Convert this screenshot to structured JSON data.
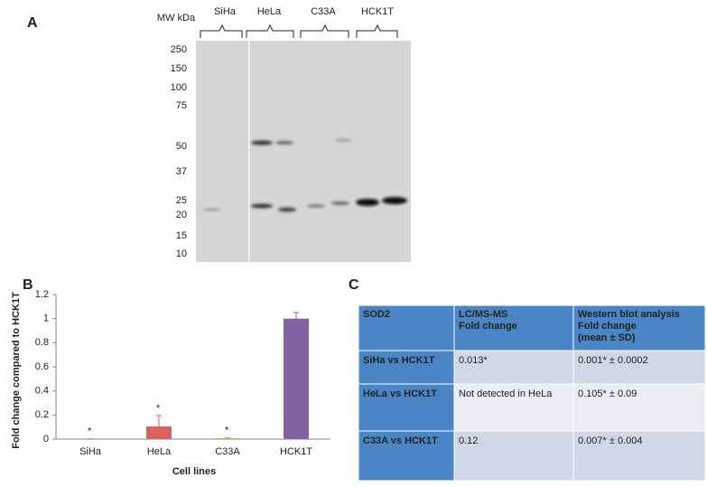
{
  "panel_labels": [
    "A",
    "B",
    "C"
  ],
  "blot": {
    "mw_label": "MW kDa",
    "mw_markers": [
      250,
      150,
      100,
      75,
      50,
      37,
      25,
      20,
      15,
      10
    ],
    "lanes": [
      "SiHa",
      "HeLa",
      "C33A",
      "HCK1T"
    ]
  },
  "chart_data": {
    "type": "bar",
    "ylabel": "Fold change compared to HCK1T",
    "xlabel": "Cell lines",
    "categories": [
      "SiHa",
      "HeLa",
      "C33A",
      "HCK1T"
    ],
    "series": [
      {
        "values": [
          0.001,
          0.105,
          0.007,
          1.0
        ],
        "errors": [
          0.0002,
          0.09,
          0.004,
          0.05
        ],
        "colors": [
          "#4f81bd",
          "#d9625e",
          "#9bbb59",
          "#8064a2"
        ]
      }
    ],
    "annotations": [
      "*",
      "*",
      "*"
    ],
    "ylim": [
      0,
      1.2
    ],
    "yticks": [
      0,
      0.2,
      0.4,
      0.6,
      0.8,
      1,
      1.2
    ]
  },
  "table": {
    "header": [
      [
        "SOD2"
      ],
      [
        "LC/MS-MS",
        "Fold change"
      ],
      [
        "Western blot analysis",
        "Fold change",
        "(mean ± SD)"
      ]
    ],
    "rows": [
      [
        "SiHa vs HCK1T",
        "0.013*",
        "0.001* ± 0.0002"
      ],
      [
        "HeLa vs HCK1T",
        "Not detected in HeLa",
        "0.105* ± 0.09"
      ],
      [
        "C33A vs HCK1T",
        "0.12",
        "0.007* ± 0.004"
      ]
    ]
  }
}
